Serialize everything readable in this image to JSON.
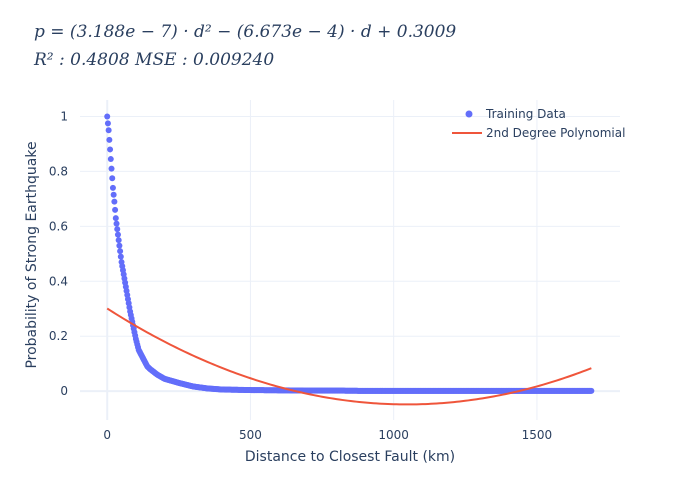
{
  "title": {
    "line1": "p = (3.188e − 7) · d² − (6.673e − 4) · d + 0.3009",
    "line2": "R² : 0.4808  MSE : 0.009240"
  },
  "colors": {
    "training": "#636efa",
    "polynomial": "#ef553b",
    "grid": "#ebf0f8",
    "zeroline": "#ebf0f8",
    "text": "#2a3f5f"
  },
  "chart_data": {
    "type": "scatter",
    "xlabel": "Distance to Closest Fault (km)",
    "ylabel": "Probability of Strong Earthquake",
    "xlim": [
      -95,
      1790
    ],
    "ylim": [
      -0.105,
      1.06
    ],
    "x_ticks": [
      0,
      500,
      1000,
      1500
    ],
    "x_tick_labels": [
      "0",
      "500",
      "1000",
      "1500"
    ],
    "y_ticks": [
      0,
      0.2,
      0.4,
      0.6,
      0.8,
      1
    ],
    "y_tick_labels": [
      "0",
      "0.2",
      "0.4",
      "0.6",
      "0.8",
      "1"
    ],
    "grid": true,
    "legend": "top-right",
    "series": [
      {
        "name": "Training Data",
        "mode": "markers",
        "x": [
          0,
          5,
          10,
          15,
          20,
          25,
          30,
          40,
          50,
          60,
          70,
          80,
          90,
          100,
          110,
          120,
          130,
          140,
          150,
          175,
          200,
          250,
          300,
          350,
          400,
          500,
          600,
          700,
          800,
          900,
          1000,
          1100,
          1200,
          1300,
          1400,
          1500,
          1600,
          1690
        ],
        "y": [
          1.0,
          0.95,
          0.88,
          0.81,
          0.74,
          0.69,
          0.63,
          0.55,
          0.47,
          0.41,
          0.35,
          0.29,
          0.24,
          0.19,
          0.15,
          0.13,
          0.11,
          0.09,
          0.08,
          0.06,
          0.045,
          0.03,
          0.017,
          0.01,
          0.006,
          0.004,
          0.003,
          0.002,
          0.002,
          0.001,
          0.001,
          0.001,
          0.001,
          0.001,
          0.001,
          0.001,
          0.001,
          0.001
        ]
      },
      {
        "name": "2nd Degree Polynomial",
        "mode": "lines",
        "coefficients": {
          "a": 3.188e-07,
          "b": -0.0006673,
          "c": 0.3009
        },
        "x_range": [
          0,
          1690
        ]
      }
    ]
  }
}
